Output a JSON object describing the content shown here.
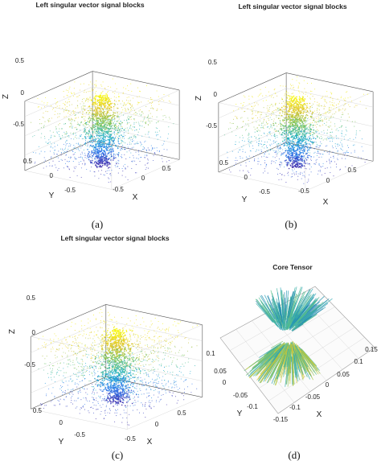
{
  "chart_data": [
    {
      "type": "scatter",
      "panel": "a",
      "caption": "(a)",
      "title": "Left singular vector signal blocks",
      "xlabel": "X",
      "ylabel": "Y",
      "zlabel": "Z",
      "xticks": [
        "-0.5",
        "0",
        "0.5"
      ],
      "yticks": [
        "0.5",
        "0",
        "-0.5"
      ],
      "zticks": [
        "0.5",
        "0",
        "-0.5"
      ],
      "xlim": [
        -0.75,
        0.75
      ],
      "ylim": [
        -0.75,
        0.75
      ],
      "zlim": [
        -0.9,
        0.9
      ],
      "colormap": [
        "#3e26a8",
        "#2f7ef0",
        "#1bb0c8",
        "#74c45d",
        "#e1c228",
        "#f9fb0e"
      ]
    },
    {
      "type": "scatter",
      "panel": "b",
      "caption": "(b)",
      "title": "Left singular vector signal blocks",
      "xlabel": "X",
      "ylabel": "Y",
      "zlabel": "Z",
      "xticks": [
        "-0.5",
        "0",
        "0.5"
      ],
      "yticks": [
        "0.5",
        "0",
        "-0.5"
      ],
      "zticks": [
        "0.5",
        "0",
        "-0.5"
      ],
      "xlim": [
        -0.75,
        0.75
      ],
      "ylim": [
        -0.75,
        0.75
      ],
      "zlim": [
        -0.9,
        0.9
      ],
      "colormap": [
        "#3e26a8",
        "#2f7ef0",
        "#1bb0c8",
        "#74c45d",
        "#e1c228",
        "#f9fb0e"
      ]
    },
    {
      "type": "scatter",
      "panel": "c",
      "caption": "(c)",
      "title": "Left singular vector signal blocks",
      "xlabel": "X",
      "ylabel": "Y",
      "zlabel": "Z",
      "xticks": [
        "-0.5",
        "0",
        "0.5"
      ],
      "yticks": [
        "0.5",
        "0",
        "-0.5"
      ],
      "zticks": [
        "0.5",
        "0",
        "-0.5"
      ],
      "xlim": [
        -0.75,
        0.75
      ],
      "ylim": [
        -0.75,
        0.75
      ],
      "zlim": [
        -0.9,
        0.9
      ],
      "colormap": [
        "#3e26a8",
        "#2f7ef0",
        "#1bb0c8",
        "#74c45d",
        "#e1c228",
        "#f9fb0e"
      ]
    },
    {
      "type": "scatter",
      "panel": "d",
      "caption": "(d)",
      "title": "Core Tensor",
      "xlabel": "X",
      "ylabel": "Y",
      "xticks": [
        "-0.15",
        "-0.1",
        "-0.05",
        "0",
        "0.05",
        "0.1",
        "0.15"
      ],
      "yticks": [
        "0.1",
        "0.05",
        "0",
        "-0.05",
        "-0.1"
      ],
      "xlim": [
        -0.15,
        0.15
      ],
      "ylim": [
        -0.12,
        0.12
      ],
      "colormap": [
        "#1f6fa8",
        "#29a6b8",
        "#5cc08a",
        "#b4c83a",
        "#e6c52a"
      ]
    }
  ]
}
